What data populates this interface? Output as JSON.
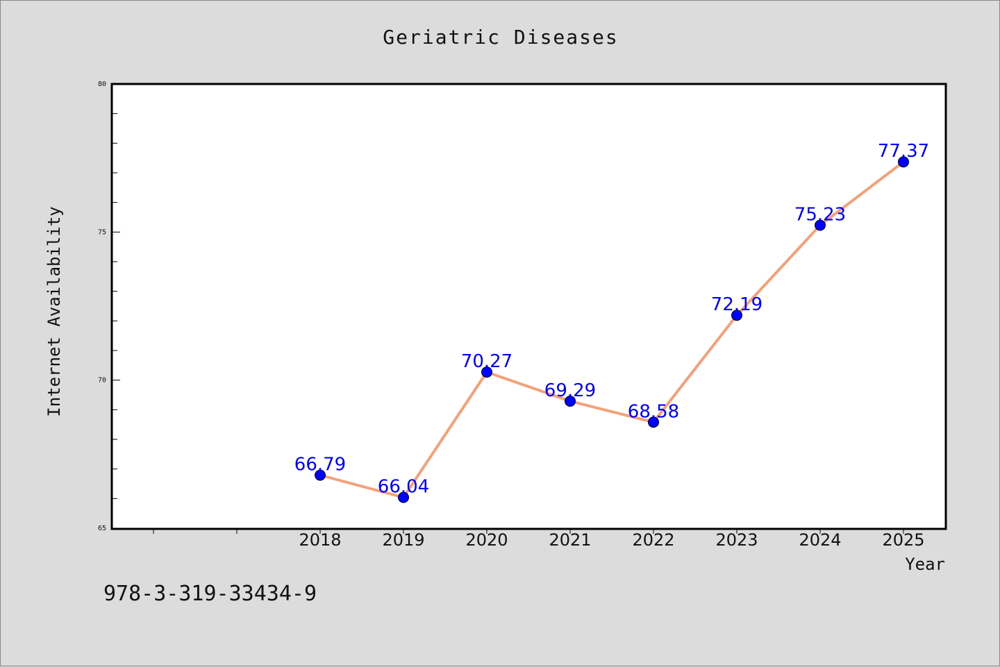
{
  "footnote": "978-3-319-33434-9",
  "chart_data": {
    "type": "line",
    "title": "Geriatric Diseases",
    "xlabel": "Year",
    "ylabel": "Internet Availability",
    "categories": [
      "2018",
      "2019",
      "2020",
      "2021",
      "2022",
      "2023",
      "2024",
      "2025"
    ],
    "series": [
      {
        "values": [
          66.79,
          66.04,
          70.27,
          69.29,
          68.58,
          72.19,
          75.23,
          77.37
        ],
        "line_color": "#f4a078",
        "marker_color": "#0000ff",
        "label_color": "#0000ff"
      }
    ],
    "data_labels": [
      "66.79",
      "66.04",
      "70.27",
      "69.29",
      "68.58",
      "72.19",
      "75.23",
      "77.37"
    ],
    "ylim": [
      65,
      80
    ],
    "yticks": [
      "65",
      "70",
      "75",
      "80"
    ],
    "grid": false,
    "legend": "none"
  }
}
